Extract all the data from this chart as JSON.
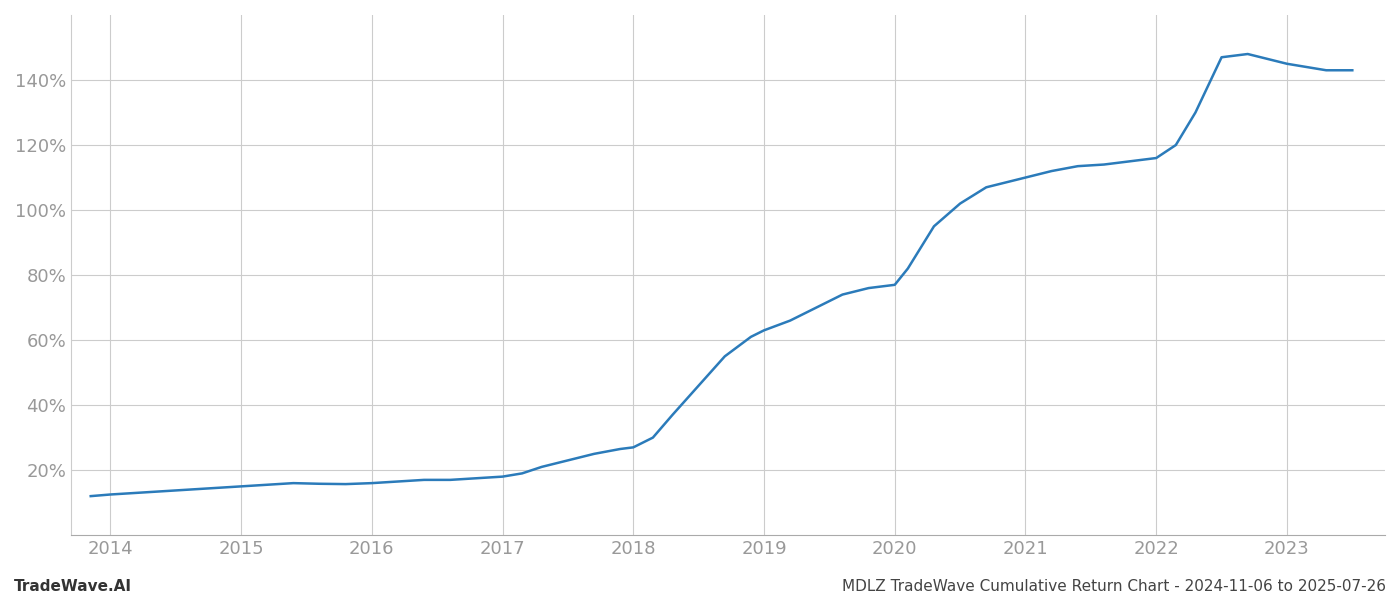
{
  "title": "MDLZ TradeWave Cumulative Return Chart - 2024-11-06 to 2025-07-26",
  "watermark": "TradeWave.AI",
  "line_color": "#2b7bba",
  "background_color": "#ffffff",
  "grid_color": "#cccccc",
  "x_values": [
    2013.85,
    2014.0,
    2014.2,
    2014.4,
    2014.6,
    2014.8,
    2015.0,
    2015.2,
    2015.4,
    2015.6,
    2015.8,
    2016.0,
    2016.2,
    2016.4,
    2016.6,
    2016.8,
    2017.0,
    2017.15,
    2017.3,
    2017.5,
    2017.7,
    2017.9,
    2018.0,
    2018.15,
    2018.3,
    2018.5,
    2018.7,
    2018.9,
    2019.0,
    2019.2,
    2019.4,
    2019.6,
    2019.8,
    2020.0,
    2020.1,
    2020.3,
    2020.5,
    2020.7,
    2020.9,
    2021.0,
    2021.2,
    2021.4,
    2021.6,
    2021.8,
    2022.0,
    2022.15,
    2022.3,
    2022.5,
    2022.7,
    2023.0,
    2023.3,
    2023.5
  ],
  "y_values": [
    12,
    12.5,
    13,
    13.5,
    14,
    14.5,
    15,
    15.5,
    16,
    15.8,
    15.7,
    16,
    16.5,
    17,
    17,
    17.5,
    18,
    19,
    21,
    23,
    25,
    26.5,
    27,
    30,
    37,
    46,
    55,
    61,
    63,
    66,
    70,
    74,
    76,
    77,
    82,
    95,
    102,
    107,
    109,
    110,
    112,
    113.5,
    114,
    115,
    116,
    120,
    130,
    147,
    148,
    145,
    143,
    143
  ],
  "xlim": [
    2013.7,
    2023.75
  ],
  "ylim": [
    0,
    160
  ],
  "yticks": [
    20,
    40,
    60,
    80,
    100,
    120,
    140
  ],
  "xtick_years": [
    2014,
    2015,
    2016,
    2017,
    2018,
    2019,
    2020,
    2021,
    2022,
    2023
  ],
  "tick_label_color": "#999999",
  "tick_fontsize": 13,
  "footer_fontsize": 11,
  "line_width": 1.8
}
